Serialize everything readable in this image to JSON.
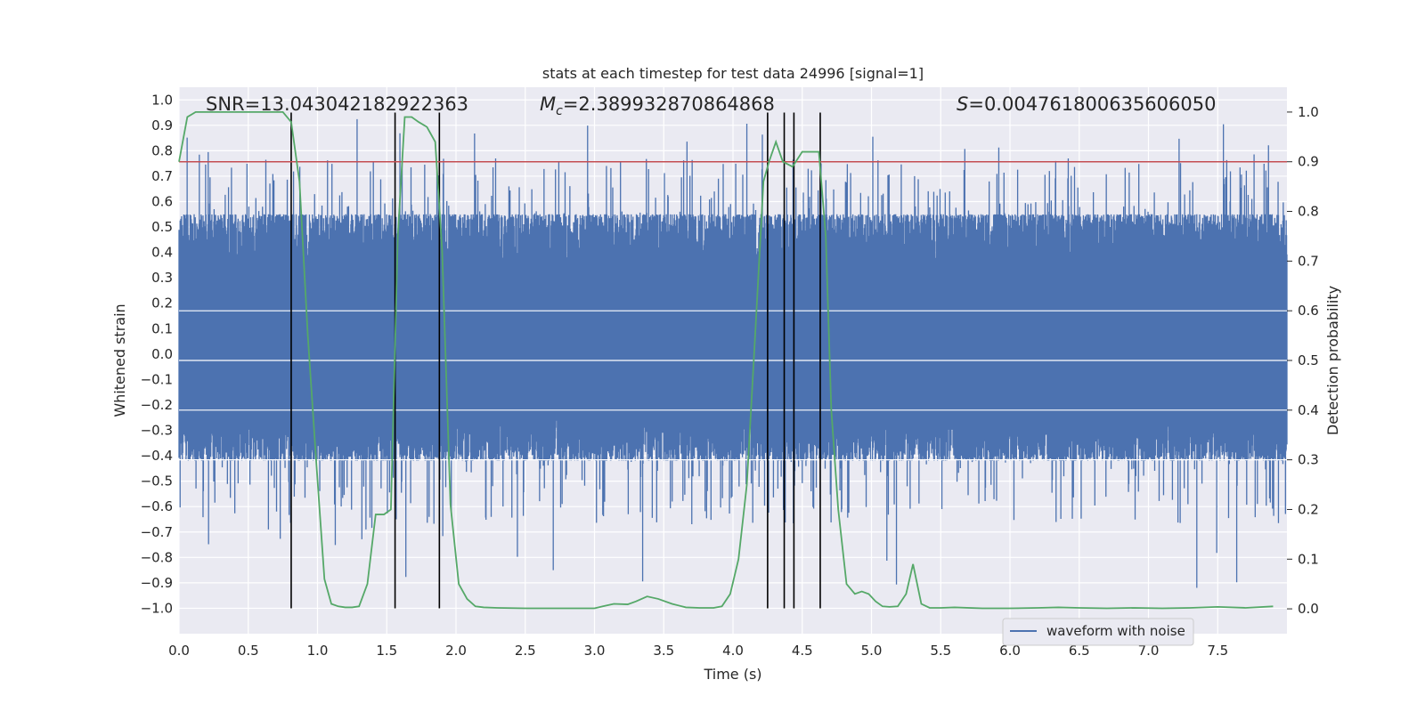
{
  "chart_data": {
    "type": "line",
    "title": "stats at each timestep for test data 24996 [signal=1]",
    "xlabel": "Time (s)",
    "ylabel": "Whitened strain",
    "y2label": "Detection probability",
    "xlim": [
      0.0,
      8.0
    ],
    "ylim": [
      -1.1,
      1.05
    ],
    "y2lim": [
      -0.05,
      1.05
    ],
    "x_ticks": [
      0.0,
      0.5,
      1.0,
      1.5,
      2.0,
      2.5,
      3.0,
      3.5,
      4.0,
      4.5,
      5.0,
      5.5,
      6.0,
      6.5,
      7.0,
      7.5
    ],
    "x_tick_labels": [
      "0.0",
      "0.5",
      "1.0",
      "1.5",
      "2.0",
      "2.5",
      "3.0",
      "3.5",
      "4.0",
      "4.5",
      "5.0",
      "5.5",
      "6.0",
      "6.5",
      "7.0",
      "7.5"
    ],
    "y_ticks": [
      1.0,
      0.9,
      0.8,
      0.7,
      0.6,
      0.5,
      0.4,
      0.3,
      0.2,
      0.1,
      0.0,
      -0.1,
      -0.2,
      -0.3,
      -0.4,
      -0.5,
      -0.6,
      -0.7,
      -0.8,
      -0.9,
      -1.0
    ],
    "y_tick_labels": [
      "1.0",
      "0.9",
      "0.8",
      "0.7",
      "0.6",
      "0.5",
      "0.4",
      "0.3",
      "0.2",
      "0.1",
      "0.0",
      "−0.1",
      "−0.2",
      "−0.3",
      "−0.4",
      "−0.5",
      "−0.6",
      "−0.7",
      "−0.8",
      "−0.9",
      "−1.0"
    ],
    "y2_ticks": [
      1.0,
      0.9,
      0.8,
      0.7,
      0.6,
      0.5,
      0.4,
      0.3,
      0.2,
      0.1,
      0.0
    ],
    "y2_tick_labels": [
      "1.0",
      "0.9",
      "0.8",
      "0.7",
      "0.6",
      "0.5",
      "0.4",
      "0.3",
      "0.2",
      "0.1",
      "0.0"
    ],
    "grid": true,
    "legend": {
      "placement": "lower-right",
      "entries": [
        {
          "label": "waveform with noise",
          "color": "#4c72b0"
        }
      ]
    },
    "annotations": [
      {
        "id": "snr",
        "text": "SNR=13.043042182922363"
      },
      {
        "id": "mc",
        "prefix": "M",
        "subscript": "c",
        "text": "=2.389932870864868"
      },
      {
        "id": "s",
        "prefix": "S",
        "text": "=0.004761800635606050"
      }
    ],
    "threshold": {
      "y2": 0.9,
      "color": "#c44e52"
    },
    "event_lines_x": [
      0.81,
      1.56,
      1.88,
      4.25,
      4.37,
      4.44,
      4.63
    ],
    "event_lines_y_range": [
      -1.0,
      0.95
    ],
    "waveform_noise": {
      "name": "waveform with noise",
      "color": "#4c72b0",
      "n_samples": 3000,
      "core_low": -0.23,
      "core_high": 0.35,
      "typical_low": -0.42,
      "typical_high": 0.55,
      "max_high": 0.93,
      "min_low": -1.0
    },
    "detection_probability": {
      "color": "#55a868",
      "x": [
        0.0,
        0.06,
        0.12,
        0.2,
        0.3,
        0.4,
        0.5,
        0.6,
        0.7,
        0.75,
        0.81,
        0.87,
        0.93,
        0.99,
        1.05,
        1.1,
        1.15,
        1.2,
        1.25,
        1.3,
        1.36,
        1.42,
        1.48,
        1.53,
        1.58,
        1.63,
        1.68,
        1.73,
        1.79,
        1.85,
        1.9,
        1.96,
        2.02,
        2.08,
        2.14,
        2.2,
        2.3,
        2.5,
        2.7,
        2.9,
        3.0,
        3.06,
        3.14,
        3.24,
        3.3,
        3.38,
        3.46,
        3.56,
        3.66,
        3.76,
        3.86,
        3.92,
        3.98,
        4.04,
        4.1,
        4.16,
        4.22,
        4.26,
        4.31,
        4.36,
        4.43,
        4.5,
        4.56,
        4.62,
        4.67,
        4.71,
        4.76,
        4.82,
        4.88,
        4.93,
        4.98,
        5.03,
        5.08,
        5.13,
        5.19,
        5.25,
        5.3,
        5.36,
        5.42,
        5.5,
        5.6,
        5.8,
        6.0,
        6.2,
        6.35,
        6.5,
        6.7,
        6.9,
        7.1,
        7.3,
        7.5,
        7.7,
        7.9
      ],
      "y": [
        0.9,
        0.99,
        1.0,
        1.0,
        1.0,
        1.0,
        1.0,
        1.0,
        1.0,
        1.0,
        0.98,
        0.86,
        0.55,
        0.3,
        0.06,
        0.01,
        0.005,
        0.003,
        0.003,
        0.005,
        0.05,
        0.19,
        0.19,
        0.2,
        0.75,
        0.99,
        0.99,
        0.98,
        0.97,
        0.94,
        0.72,
        0.21,
        0.05,
        0.02,
        0.005,
        0.003,
        0.002,
        0.001,
        0.001,
        0.001,
        0.001,
        0.005,
        0.01,
        0.009,
        0.015,
        0.025,
        0.02,
        0.01,
        0.003,
        0.002,
        0.002,
        0.005,
        0.03,
        0.1,
        0.25,
        0.55,
        0.86,
        0.9,
        0.94,
        0.9,
        0.89,
        0.92,
        0.92,
        0.92,
        0.75,
        0.4,
        0.2,
        0.05,
        0.03,
        0.035,
        0.03,
        0.015,
        0.005,
        0.004,
        0.005,
        0.03,
        0.09,
        0.01,
        0.002,
        0.002,
        0.003,
        0.001,
        0.001,
        0.002,
        0.003,
        0.002,
        0.001,
        0.002,
        0.001,
        0.002,
        0.004,
        0.002,
        0.005
      ]
    }
  }
}
